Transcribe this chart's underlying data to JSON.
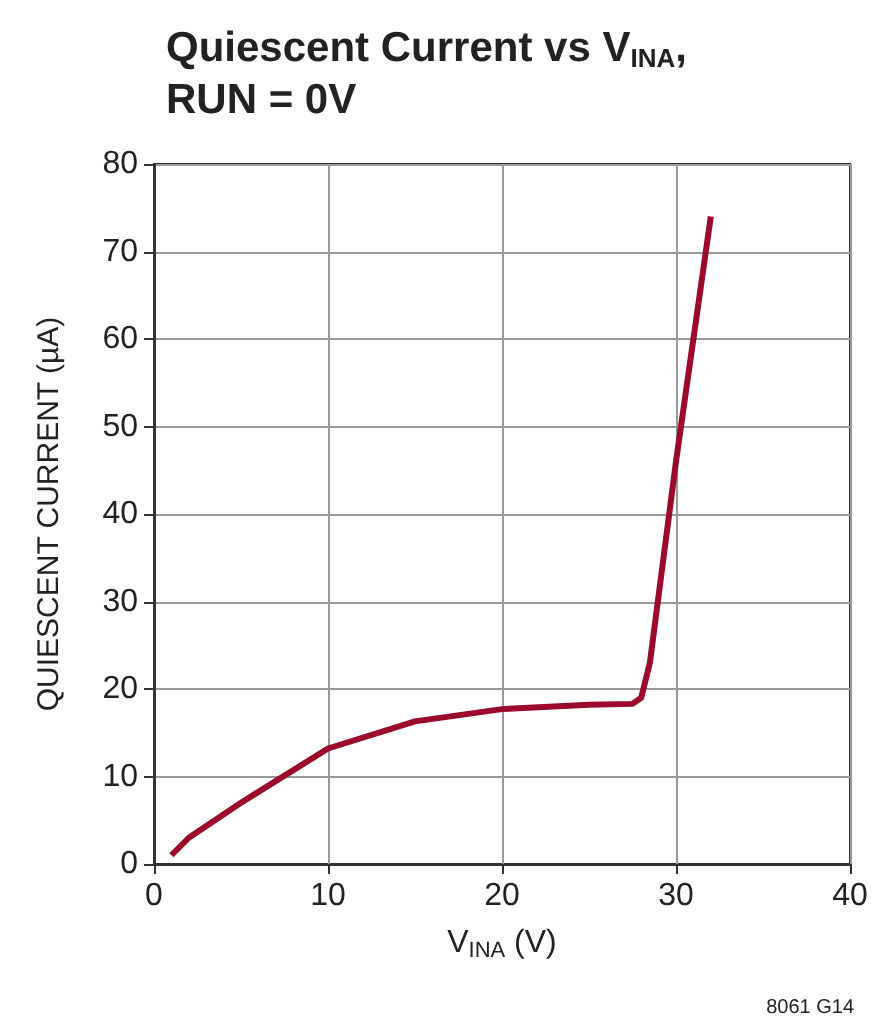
{
  "chart_data": {
    "type": "line",
    "title": "Quiescent Current vs V$_{INA}$,\nRUN = 0V",
    "xlabel": "V$_{INA}$ (V)",
    "ylabel": "QUIESCENT CURRENT (µA)",
    "annotations": [
      "8061 G14"
    ],
    "x": [
      1,
      2,
      5,
      10,
      15,
      20,
      25,
      27.5,
      28,
      28.5,
      30,
      32
    ],
    "series": [
      {
        "color": "#9b0a2a",
        "values": [
          1,
          3,
          7,
          13.2,
          16.3,
          17.7,
          18.2,
          18.3,
          19,
          23,
          46,
          74
        ]
      }
    ],
    "xlim": [
      0,
      40
    ],
    "xticks": [
      0,
      10,
      20,
      30,
      40
    ],
    "ylim": [
      0,
      80
    ],
    "yticks": [
      0,
      10,
      20,
      30,
      40,
      50,
      60,
      70,
      80
    ],
    "grid": true,
    "marker": "none",
    "line_style": "solid"
  }
}
